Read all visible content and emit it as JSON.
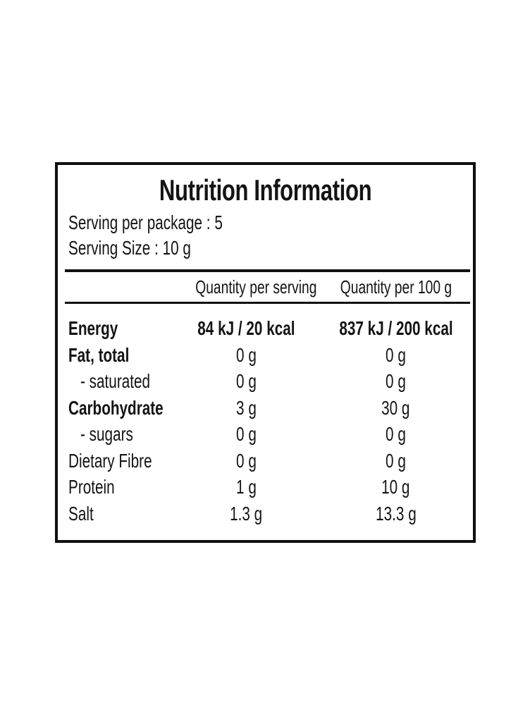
{
  "label": {
    "title": "Nutrition Information",
    "serving_per_package": "Serving per package : 5",
    "serving_size": "Serving Size : 10 g",
    "columns": [
      "Quantity per serving",
      "Quantity per 100 g"
    ],
    "rows": [
      {
        "name": "Energy",
        "per_serving": "84 kJ / 20 kcal",
        "per_100g": "837 kJ / 200 kcal"
      },
      {
        "name": "Fat, total",
        "per_serving": "0 g",
        "per_100g": "0 g"
      },
      {
        "name": "- saturated",
        "per_serving": "0 g",
        "per_100g": "0 g"
      },
      {
        "name": "Carbohydrate",
        "per_serving": "3 g",
        "per_100g": "30 g"
      },
      {
        "name": "- sugars",
        "per_serving": "0 g",
        "per_100g": "0 g"
      },
      {
        "name": "Dietary Fibre",
        "per_serving": "0 g",
        "per_100g": "0 g"
      },
      {
        "name": "Protein",
        "per_serving": "1 g",
        "per_100g": "10 g"
      },
      {
        "name": "Salt",
        "per_serving": "1.3 g",
        "per_100g": "13.3 g"
      }
    ],
    "colors": {
      "background": "#ffffff",
      "text": "#141414",
      "border": "#0f0f0f"
    }
  }
}
